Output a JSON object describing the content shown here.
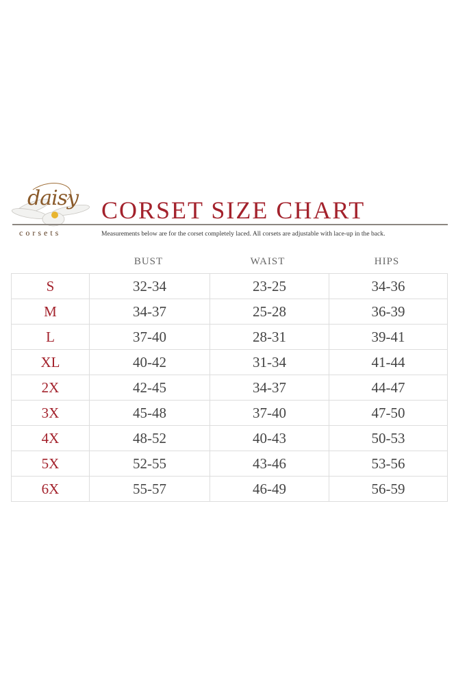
{
  "brand": {
    "logo_script": "daisy",
    "logo_sub": "corsets"
  },
  "title": "CORSET SIZE CHART",
  "note": "Measurements below are for the corset completely laced.  All corsets are adjustable with lace-up in the back.",
  "colors": {
    "accent": "#a3222c",
    "text": "#444444",
    "grid": "#dddddd"
  },
  "headers": [
    "BUST",
    "WAIST",
    "HIPS"
  ],
  "rows": [
    {
      "size": "S",
      "bust": "32-34",
      "waist": "23-25",
      "hips": "34-36"
    },
    {
      "size": "M",
      "bust": "34-37",
      "waist": "25-28",
      "hips": "36-39"
    },
    {
      "size": "L",
      "bust": "37-40",
      "waist": "28-31",
      "hips": "39-41"
    },
    {
      "size": "XL",
      "bust": "40-42",
      "waist": "31-34",
      "hips": "41-44"
    },
    {
      "size": "2X",
      "bust": "42-45",
      "waist": "34-37",
      "hips": "44-47"
    },
    {
      "size": "3X",
      "bust": "45-48",
      "waist": "37-40",
      "hips": "47-50"
    },
    {
      "size": "4X",
      "bust": "48-52",
      "waist": "40-43",
      "hips": "50-53"
    },
    {
      "size": "5X",
      "bust": "52-55",
      "waist": "43-46",
      "hips": "53-56"
    },
    {
      "size": "6X",
      "bust": "55-57",
      "waist": "46-49",
      "hips": "56-59"
    }
  ]
}
